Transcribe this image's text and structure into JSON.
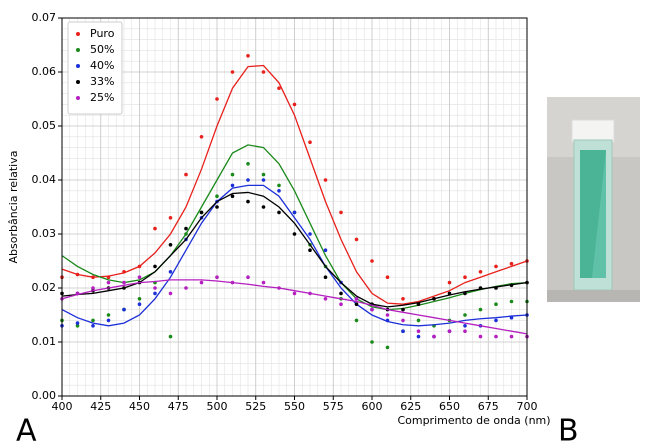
{
  "chart_data": {
    "type": "scatter",
    "panel_labels": [
      "A",
      "B"
    ],
    "x_label": "Comprimento de onda (nm)",
    "y_label": "Absorbância relativa",
    "xlim": [
      400,
      700
    ],
    "xticks": [
      400,
      425,
      450,
      475,
      500,
      525,
      550,
      575,
      600,
      625,
      650,
      675,
      700
    ],
    "ylim": [
      0,
      0.07
    ],
    "yticks": [
      {
        "value": 0,
        "label": "0.00"
      },
      0.01,
      0.02,
      0.03,
      0.04,
      0.05,
      0.06,
      0.07
    ],
    "grid": true,
    "legend": "upper left",
    "x": [
      400,
      410,
      420,
      430,
      440,
      450,
      460,
      470,
      480,
      490,
      500,
      510,
      520,
      530,
      540,
      550,
      560,
      570,
      580,
      590,
      600,
      610,
      620,
      630,
      640,
      650,
      660,
      670,
      680,
      690,
      700
    ],
    "series": [
      {
        "name": "Puro",
        "color": "#e8201c",
        "values": [
          0.022,
          0.0225,
          0.022,
          0.022,
          0.023,
          0.024,
          0.031,
          0.033,
          0.041,
          0.048,
          0.055,
          0.06,
          0.063,
          0.06,
          0.057,
          0.054,
          0.047,
          0.04,
          0.034,
          0.029,
          0.025,
          0.022,
          0.018,
          0.017,
          0.018,
          0.021,
          0.022,
          0.023,
          0.024,
          0.0245,
          0.025
        ],
        "fit": [
          0.0235,
          0.0225,
          0.022,
          0.0222,
          0.0228,
          0.024,
          0.0265,
          0.03,
          0.035,
          0.042,
          0.05,
          0.057,
          0.061,
          0.0612,
          0.058,
          0.052,
          0.044,
          0.036,
          0.029,
          0.023,
          0.019,
          0.0172,
          0.017,
          0.0175,
          0.0185,
          0.0195,
          0.021,
          0.022,
          0.023,
          0.024,
          0.025
        ]
      },
      {
        "name": "50%",
        "color": "#1a8a1a",
        "values": [
          0.014,
          0.013,
          0.014,
          0.015,
          0.016,
          0.018,
          0.021,
          0.011,
          0.03,
          0.034,
          0.037,
          0.041,
          0.043,
          0.041,
          0.039,
          0.034,
          0.028,
          0.024,
          0.018,
          0.014,
          0.01,
          0.009,
          0.012,
          0.014,
          0.013,
          0.014,
          0.015,
          0.016,
          0.017,
          0.0175,
          0.0175
        ],
        "fit": [
          0.026,
          0.024,
          0.0225,
          0.0215,
          0.021,
          0.0215,
          0.023,
          0.026,
          0.03,
          0.035,
          0.04,
          0.045,
          0.0465,
          0.046,
          0.043,
          0.038,
          0.032,
          0.026,
          0.021,
          0.018,
          0.0165,
          0.016,
          0.0162,
          0.0168,
          0.0175,
          0.0182,
          0.019,
          0.0197,
          0.0203,
          0.0208,
          0.021
        ]
      },
      {
        "name": "40%",
        "color": "#1c2fd8",
        "values": [
          0.013,
          0.0135,
          0.013,
          0.014,
          0.016,
          0.017,
          0.019,
          0.023,
          0.029,
          0.033,
          0.036,
          0.039,
          0.04,
          0.04,
          0.038,
          0.034,
          0.03,
          0.027,
          0.021,
          0.018,
          0.016,
          0.014,
          0.012,
          0.011,
          0.011,
          0.012,
          0.013,
          0.013,
          0.014,
          0.0145,
          0.015
        ],
        "fit": [
          0.016,
          0.0145,
          0.0135,
          0.013,
          0.0135,
          0.015,
          0.018,
          0.022,
          0.027,
          0.032,
          0.036,
          0.0385,
          0.039,
          0.039,
          0.037,
          0.033,
          0.029,
          0.024,
          0.02,
          0.017,
          0.015,
          0.0138,
          0.0132,
          0.013,
          0.0132,
          0.0135,
          0.014,
          0.0143,
          0.0145,
          0.0148,
          0.015
        ]
      },
      {
        "name": "33%",
        "color": "#000000",
        "values": [
          0.019,
          0.019,
          0.0195,
          0.02,
          0.02,
          0.021,
          0.024,
          0.028,
          0.031,
          0.034,
          0.035,
          0.037,
          0.036,
          0.035,
          0.034,
          0.03,
          0.027,
          0.022,
          0.019,
          0.017,
          0.017,
          0.016,
          0.016,
          0.017,
          0.018,
          0.019,
          0.019,
          0.02,
          0.02,
          0.0205,
          0.021
        ],
        "fit": [
          0.0185,
          0.0188,
          0.019,
          0.0195,
          0.02,
          0.021,
          0.023,
          0.026,
          0.029,
          0.033,
          0.036,
          0.0375,
          0.0377,
          0.037,
          0.035,
          0.032,
          0.028,
          0.024,
          0.021,
          0.0185,
          0.017,
          0.0165,
          0.0168,
          0.0173,
          0.018,
          0.0187,
          0.0193,
          0.0198,
          0.0202,
          0.0206,
          0.021
        ]
      },
      {
        "name": "25%",
        "color": "#b51fc0",
        "values": [
          0.018,
          0.019,
          0.02,
          0.021,
          0.021,
          0.022,
          0.02,
          0.019,
          0.02,
          0.021,
          0.022,
          0.021,
          0.022,
          0.021,
          0.02,
          0.019,
          0.019,
          0.018,
          0.017,
          0.018,
          0.016,
          0.015,
          0.014,
          0.012,
          0.011,
          0.012,
          0.012,
          0.011,
          0.011,
          0.011,
          0.011
        ],
        "fit": [
          0.018,
          0.0188,
          0.0195,
          0.02,
          0.0205,
          0.021,
          0.0212,
          0.0215,
          0.0215,
          0.0215,
          0.0213,
          0.021,
          0.0207,
          0.0203,
          0.02,
          0.0195,
          0.019,
          0.0185,
          0.018,
          0.0175,
          0.0168,
          0.016,
          0.0155,
          0.015,
          0.0145,
          0.014,
          0.0135,
          0.013,
          0.0125,
          0.012,
          0.0115
        ]
      }
    ]
  }
}
